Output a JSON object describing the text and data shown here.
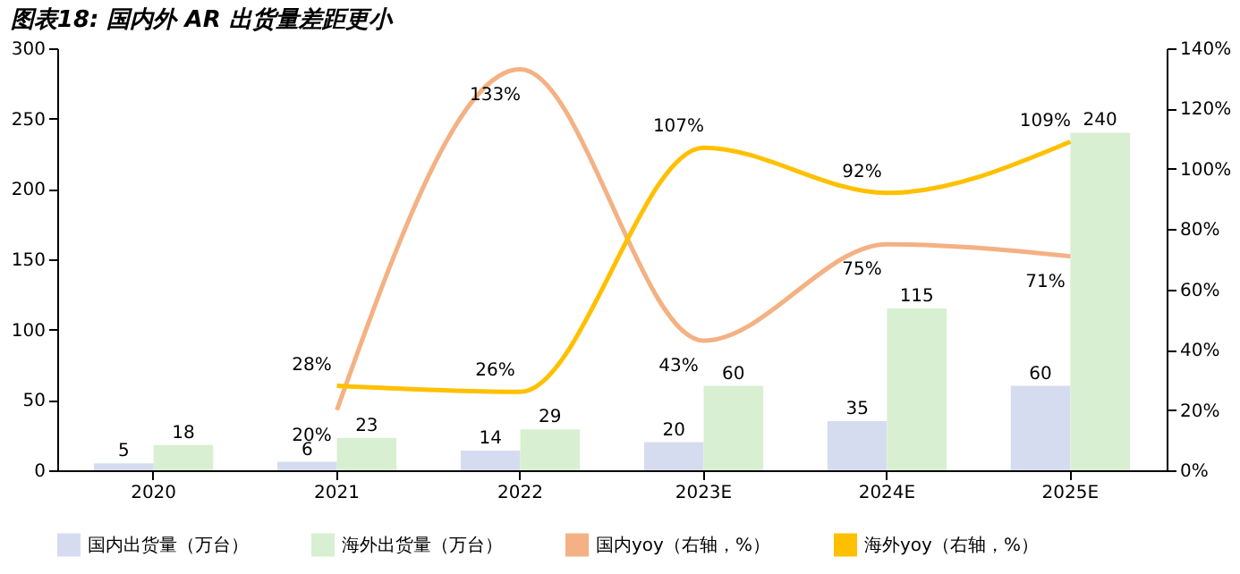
{
  "chart_data": {
    "type": "bar",
    "title": "图表18:  国内外 AR 出货量差距更小",
    "categories": [
      "2020",
      "2021",
      "2022",
      "2023E",
      "2024E",
      "2025E"
    ],
    "series": [
      {
        "name": "国内出货量（万台）",
        "type": "bar",
        "color": "#d6dcf0",
        "values": [
          5,
          6,
          14,
          20,
          35,
          60
        ]
      },
      {
        "name": "海外出货量（万台）",
        "type": "bar",
        "color": "#d8efd2",
        "values": [
          18,
          23,
          29,
          60,
          115,
          240
        ]
      },
      {
        "name": "国内yoy（右轴，%）",
        "type": "line",
        "axis": "y2",
        "color": "#f4b183",
        "values": [
          null,
          20,
          133,
          43,
          75,
          71
        ],
        "value_labels": [
          null,
          "20%",
          "133%",
          "43%",
          "75%",
          "71%"
        ]
      },
      {
        "name": "海外yoy（右轴，%）",
        "type": "line",
        "axis": "y2",
        "color": "#ffc000",
        "values": [
          null,
          28,
          26,
          107,
          92,
          109
        ],
        "value_labels": [
          null,
          "28%",
          "26%",
          "107%",
          "92%",
          "109%"
        ]
      }
    ],
    "ylim": [
      0,
      300
    ],
    "yticks": [
      0,
      50,
      100,
      150,
      200,
      250,
      300
    ],
    "y2lim": [
      0,
      140
    ],
    "y2ticks": [
      {
        "value": 0,
        "label": "0%"
      },
      {
        "value": 20,
        "label": "20%"
      },
      {
        "value": 40,
        "label": "40%"
      },
      {
        "value": 60,
        "label": "60%"
      },
      {
        "value": 80,
        "label": "80%"
      },
      {
        "value": 100,
        "label": "100%"
      },
      {
        "value": 120,
        "label": "120%"
      },
      {
        "value": 140,
        "label": "140%"
      }
    ],
    "data_labels": true,
    "grid": false,
    "legend": "bottom",
    "marker": "none",
    "line_style": "solid"
  }
}
